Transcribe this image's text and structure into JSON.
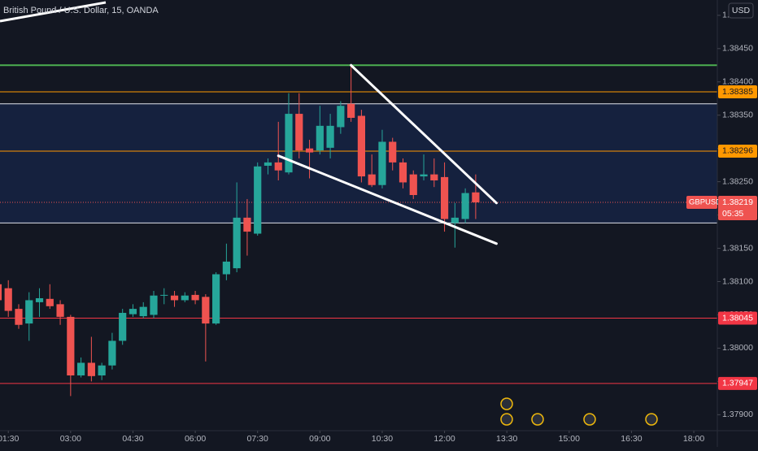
{
  "chart_data": {
    "type": "candlestick",
    "title": "British Pound / U.S. Dollar, 15, OANDA",
    "currency": "USD",
    "symbol": "GBPUSD",
    "last": 1.38219,
    "countdown": "05:35",
    "up_color": "#26a69a",
    "down_color": "#ef5350",
    "grid": false,
    "x": [
      "01:15",
      "01:30",
      "01:45",
      "02:00",
      "02:15",
      "02:30",
      "02:45",
      "03:00",
      "03:15",
      "03:30",
      "03:45",
      "04:00",
      "04:15",
      "04:30",
      "04:45",
      "05:00",
      "05:15",
      "05:30",
      "05:45",
      "06:00",
      "06:15",
      "06:30",
      "06:45",
      "07:00",
      "07:15",
      "07:30",
      "07:45",
      "08:00",
      "08:15",
      "08:30",
      "08:45",
      "09:00",
      "09:15",
      "09:30",
      "09:45",
      "10:00",
      "10:15",
      "10:30",
      "10:45",
      "11:00",
      "11:15",
      "11:30",
      "11:45",
      "12:00",
      "12:15",
      "12:30",
      "12:45"
    ],
    "open": [
      1.38096,
      1.3809,
      1.38059,
      1.38037,
      1.38069,
      1.38074,
      1.38066,
      1.38047,
      1.37959,
      1.37978,
      1.37959,
      1.37974,
      1.38011,
      1.38051,
      1.38048,
      1.3805,
      1.38079,
      1.38079,
      1.38072,
      1.3808,
      1.38077,
      1.38037,
      1.38111,
      1.3812,
      1.38196,
      1.38172,
      1.38274,
      1.38279,
      1.38264,
      1.38352,
      1.383,
      1.38297,
      1.38301,
      1.38332,
      1.38367,
      1.38349,
      1.38261,
      1.38245,
      1.3831,
      1.38279,
      1.38261,
      1.38258,
      1.38261,
      1.38257,
      1.38188,
      1.38194,
      1.38234
    ],
    "high": [
      1.38102,
      1.38102,
      1.38066,
      1.38084,
      1.3809,
      1.38096,
      1.38072,
      1.3805,
      1.37986,
      1.38017,
      1.37978,
      1.38023,
      1.38059,
      1.38066,
      1.38069,
      1.38086,
      1.3809,
      1.38086,
      1.38084,
      1.38086,
      1.38081,
      1.38114,
      1.38157,
      1.38249,
      1.38224,
      1.38279,
      1.38285,
      1.3834,
      1.38383,
      1.38383,
      1.38313,
      1.38364,
      1.38352,
      1.38371,
      1.38425,
      1.38358,
      1.38291,
      1.38328,
      1.38316,
      1.38285,
      1.38267,
      1.38291,
      1.38285,
      1.38279,
      1.38218,
      1.3824,
      1.38261
    ],
    "low": [
      1.38066,
      1.38047,
      1.38029,
      1.38011,
      1.38047,
      1.38059,
      1.38035,
      1.37928,
      1.37956,
      1.3795,
      1.37952,
      1.37968,
      1.38005,
      1.38047,
      1.38045,
      1.38045,
      1.38066,
      1.38062,
      1.38069,
      1.38066,
      1.3798,
      1.38035,
      1.38102,
      1.38114,
      1.38139,
      1.38169,
      1.38261,
      1.38252,
      1.38261,
      1.38285,
      1.38255,
      1.38291,
      1.38285,
      1.38322,
      1.3834,
      1.38249,
      1.38242,
      1.3824,
      1.38267,
      1.3824,
      1.38224,
      1.38252,
      1.38242,
      1.38175,
      1.38151,
      1.38188,
      1.38194
    ],
    "close": [
      1.38072,
      1.38056,
      1.38035,
      1.38072,
      1.38075,
      1.38063,
      1.38047,
      1.37959,
      1.37978,
      1.37958,
      1.37974,
      1.38011,
      1.38053,
      1.38059,
      1.38062,
      1.38079,
      1.3808,
      1.38072,
      1.38079,
      1.38072,
      1.38037,
      1.38111,
      1.3813,
      1.38196,
      1.38175,
      1.38273,
      1.38279,
      1.38267,
      1.38352,
      1.38297,
      1.38294,
      1.38334,
      1.38334,
      1.38364,
      1.38346,
      1.38258,
      1.38245,
      1.3831,
      1.38279,
      1.38249,
      1.3823,
      1.38261,
      1.38252,
      1.38194,
      1.38196,
      1.38233,
      1.38219
    ],
    "xlim": [
      "01:18",
      "18:34"
    ],
    "xticks": [
      "01:30",
      "03:00",
      "04:30",
      "06:00",
      "07:30",
      "09:00",
      "10:30",
      "12:00",
      "13:30",
      "15:00",
      "16:30",
      "18:00"
    ],
    "ylim": [
      1.37876,
      1.38523
    ],
    "yticks": [
      {
        "value": 1.379,
        "label": "1.37900"
      },
      {
        "value": 1.3795,
        "label": "1.37950"
      },
      {
        "value": 1.38,
        "label": "1.38000"
      },
      {
        "value": 1.3805,
        "label": "1.38050"
      },
      {
        "value": 1.381,
        "label": "1.38100"
      },
      {
        "value": 1.3815,
        "label": "1.38150"
      },
      {
        "value": 1.382,
        "label": "1.38200"
      },
      {
        "value": 1.3825,
        "label": "1.38250"
      },
      {
        "value": 1.383,
        "label": "1.38300"
      },
      {
        "value": 1.3835,
        "label": "1.38350"
      },
      {
        "value": 1.384,
        "label": "1.38400"
      },
      {
        "value": 1.3845,
        "label": "1.38450"
      },
      {
        "value": 1.385,
        "label": "1.38500"
      }
    ],
    "zone": [
      1.38367,
      1.38188
    ],
    "levels": [
      {
        "value": 1.38425,
        "color": "#4caf50"
      },
      {
        "value": 1.38385,
        "color": "#ff9800",
        "tag": true
      },
      {
        "value": 1.38296,
        "color": "#ff9800",
        "tag": true
      },
      {
        "value": 1.38045,
        "color": "#f23645",
        "tag": true
      },
      {
        "value": 1.37947,
        "color": "#f23645",
        "tag": true
      }
    ],
    "trendlines": [
      {
        "x": [
          "08:00",
          "13:15"
        ],
        "y": [
          1.38289,
          1.38157
        ],
        "color": "#ffffff"
      },
      {
        "x": [
          "09:45",
          "13:15"
        ],
        "y": [
          1.38425,
          1.38218
        ],
        "color": "#ffffff"
      }
    ]
  }
}
